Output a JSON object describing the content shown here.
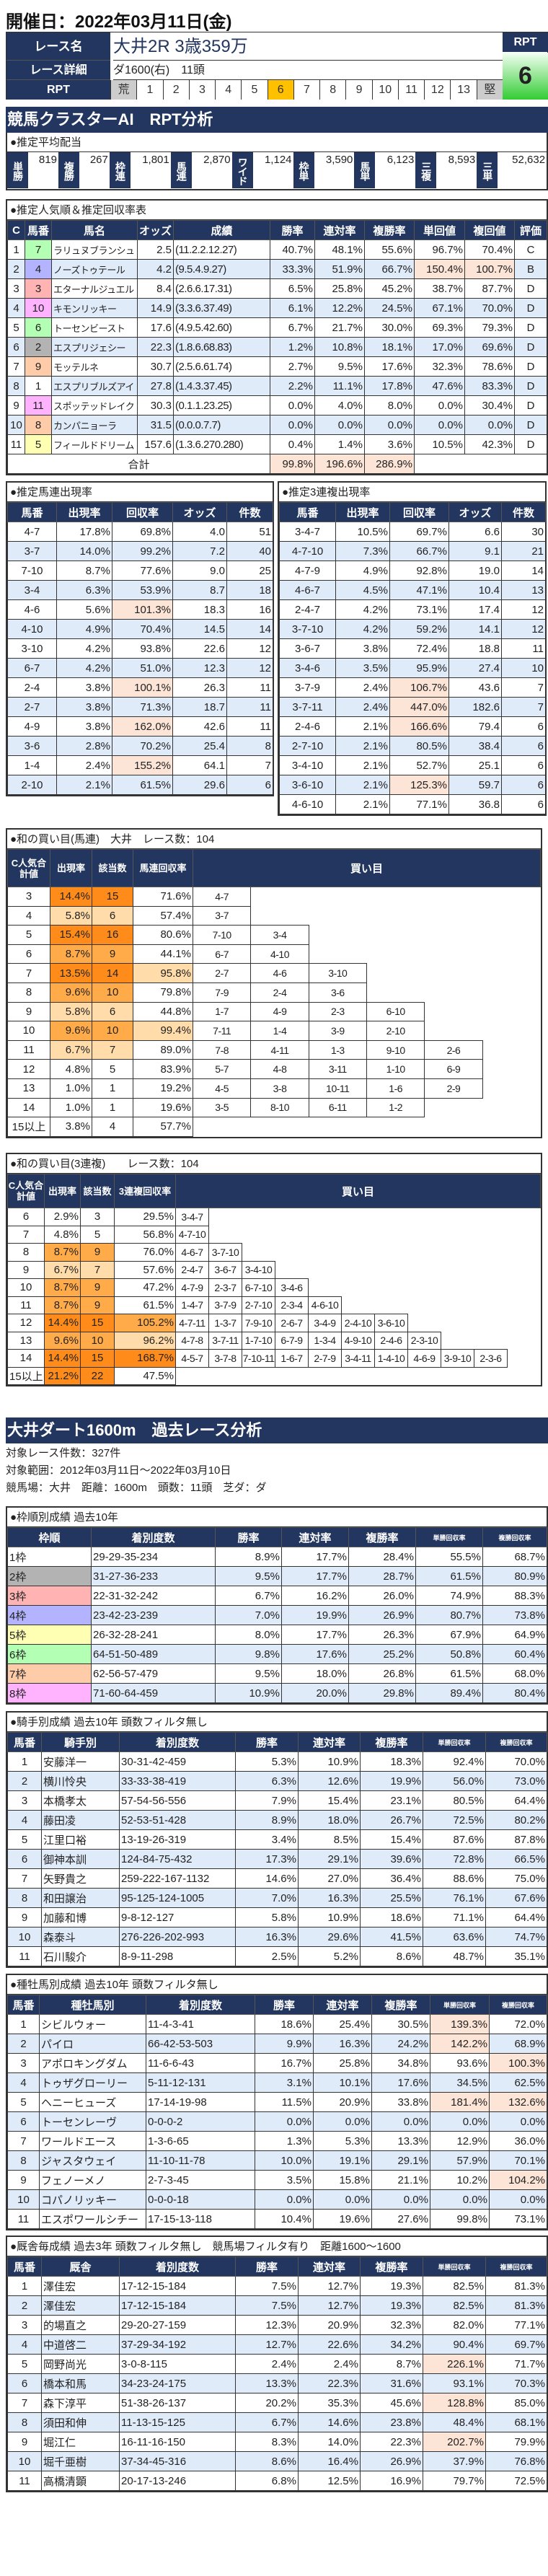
{
  "header": {
    "date_title": "開催日：2022年03月11日(金)",
    "race_name_label": "レース名",
    "race_name": "大井2R 3歳359万",
    "race_detail_label": "レース詳細",
    "race_detail": "ダ1600(右)　11頭",
    "rpt_label": "RPT",
    "rpt_scale": [
      "荒",
      "1",
      "2",
      "3",
      "4",
      "5",
      "6",
      "7",
      "8",
      "9",
      "10",
      "11",
      "12",
      "13",
      "堅"
    ],
    "rpt_selected": "6",
    "rpt_box_label": "RPT",
    "rpt_value": "6",
    "rpt_selected_color": "#FFC000"
  },
  "section1_title": "競馬クラスターAI　RPT分析",
  "payout": {
    "title": "●推定平均配当",
    "items": [
      {
        "label": "単勝",
        "value": "819"
      },
      {
        "label": "複勝",
        "value": "267"
      },
      {
        "label": "枠連",
        "value": "1,801"
      },
      {
        "label": "馬連",
        "value": "2,870"
      },
      {
        "label": "ワイド",
        "value": "1,124"
      },
      {
        "label": "枠単",
        "value": "3,590"
      },
      {
        "label": "馬単",
        "value": "6,123"
      },
      {
        "label": "三複",
        "value": "8,593"
      },
      {
        "label": "三単",
        "value": "52,632"
      }
    ]
  },
  "waku_colors": {
    "1": "#FFFFFF",
    "2": "#B3B3B3",
    "3": "#FFB3B3",
    "4": "#B3B3FF",
    "5": "#FFFFB3",
    "6": "#B3FFB3",
    "7": "#FFCCAA",
    "8": "#FFB3FF"
  },
  "popularity": {
    "title": "●推定人気順＆推定回収率表",
    "headers": [
      "C",
      "馬番",
      "馬名",
      "オッズ",
      "成績",
      "勝率",
      "連対率",
      "複勝率",
      "単回値",
      "複回値",
      "評価"
    ],
    "waku": [
      6,
      4,
      3,
      8,
      6,
      2,
      7,
      1,
      8,
      7,
      5
    ],
    "rows": [
      [
        "1",
        "7",
        "ラリュヌブランシュ",
        "2.5",
        "(11.2.2.12.27)",
        "40.7%",
        "48.1%",
        "55.6%",
        "96.7%",
        "70.4%",
        "C"
      ],
      [
        "2",
        "4",
        "ノーズトゥテール",
        "4.2",
        "(9.5.4.9.27)",
        "33.3%",
        "51.9%",
        "66.7%",
        "150.4%",
        "100.7%",
        "B"
      ],
      [
        "3",
        "3",
        "エターナルジュエル",
        "8.4",
        "(2.6.6.17.31)",
        "6.5%",
        "25.8%",
        "45.2%",
        "38.7%",
        "87.7%",
        "D"
      ],
      [
        "4",
        "10",
        "キモンリッキー",
        "14.9",
        "(3.3.6.37.49)",
        "6.1%",
        "12.2%",
        "24.5%",
        "67.1%",
        "70.0%",
        "D"
      ],
      [
        "5",
        "6",
        "トーセンビースト",
        "17.6",
        "(4.9.5.42.60)",
        "6.7%",
        "21.7%",
        "30.0%",
        "69.3%",
        "79.3%",
        "D"
      ],
      [
        "6",
        "2",
        "エスプリジェシー",
        "22.3",
        "(1.8.6.68.83)",
        "1.2%",
        "10.8%",
        "18.1%",
        "17.0%",
        "69.6%",
        "D"
      ],
      [
        "7",
        "9",
        "モッテルネ",
        "30.7",
        "(2.5.6.61.74)",
        "2.7%",
        "9.5%",
        "17.6%",
        "32.3%",
        "78.6%",
        "D"
      ],
      [
        "8",
        "1",
        "エスプリブルズアイ",
        "27.8",
        "(1.4.3.37.45)",
        "2.2%",
        "11.1%",
        "17.8%",
        "47.6%",
        "83.3%",
        "D"
      ],
      [
        "9",
        "11",
        "スポッテッドレイク",
        "30.3",
        "(0.1.1.23.25)",
        "0.0%",
        "4.0%",
        "8.0%",
        "0.0%",
        "30.4%",
        "D"
      ],
      [
        "10",
        "8",
        "カンパニョーラ",
        "31.5",
        "(0.0.0.7.7)",
        "0.0%",
        "0.0%",
        "0.0%",
        "0.0%",
        "0.0%",
        "D"
      ],
      [
        "11",
        "5",
        "フィールドドリーム",
        "157.6",
        "(1.3.6.270.280)",
        "0.4%",
        "1.4%",
        "3.6%",
        "10.5%",
        "42.3%",
        "D"
      ]
    ],
    "total_label": "合計",
    "totals": [
      "99.8%",
      "196.6%",
      "286.9%"
    ]
  },
  "umaren": {
    "title": "●推定馬連出現率",
    "headers": [
      "馬番",
      "出現率",
      "回収率",
      "オッズ",
      "件数"
    ],
    "rows": [
      [
        "4-7",
        "17.8%",
        "69.8%",
        "4.0",
        "51"
      ],
      [
        "3-7",
        "14.0%",
        "99.2%",
        "7.2",
        "40"
      ],
      [
        "7-10",
        "8.7%",
        "77.6%",
        "9.0",
        "25"
      ],
      [
        "3-4",
        "6.3%",
        "53.9%",
        "8.7",
        "18"
      ],
      [
        "4-6",
        "5.6%",
        "101.3%",
        "18.3",
        "16"
      ],
      [
        "4-10",
        "4.9%",
        "70.4%",
        "14.5",
        "14"
      ],
      [
        "3-10",
        "4.2%",
        "93.8%",
        "22.6",
        "12"
      ],
      [
        "6-7",
        "4.2%",
        "51.0%",
        "12.3",
        "12"
      ],
      [
        "2-4",
        "3.8%",
        "100.1%",
        "26.3",
        "11"
      ],
      [
        "2-7",
        "3.8%",
        "71.3%",
        "18.7",
        "11"
      ],
      [
        "4-9",
        "3.8%",
        "162.0%",
        "42.6",
        "11"
      ],
      [
        "3-6",
        "2.8%",
        "70.2%",
        "25.4",
        "8"
      ],
      [
        "1-4",
        "2.4%",
        "155.2%",
        "64.1",
        "7"
      ],
      [
        "2-10",
        "2.1%",
        "61.5%",
        "29.6",
        "6"
      ]
    ]
  },
  "sanrenpuku": {
    "title": "●推定3連複出現率",
    "headers": [
      "馬番",
      "出現率",
      "回収率",
      "オッズ",
      "件数"
    ],
    "rows": [
      [
        "3-4-7",
        "10.5%",
        "69.7%",
        "6.6",
        "30"
      ],
      [
        "4-7-10",
        "7.3%",
        "66.7%",
        "9.1",
        "21"
      ],
      [
        "4-7-9",
        "4.9%",
        "92.8%",
        "19.0",
        "14"
      ],
      [
        "4-6-7",
        "4.5%",
        "47.1%",
        "10.4",
        "13"
      ],
      [
        "2-4-7",
        "4.2%",
        "73.1%",
        "17.4",
        "12"
      ],
      [
        "3-7-10",
        "4.2%",
        "59.2%",
        "14.1",
        "12"
      ],
      [
        "3-6-7",
        "3.8%",
        "72.4%",
        "18.8",
        "11"
      ],
      [
        "3-4-6",
        "3.5%",
        "95.9%",
        "27.4",
        "10"
      ],
      [
        "3-7-9",
        "2.4%",
        "106.7%",
        "43.6",
        "7"
      ],
      [
        "3-7-11",
        "2.4%",
        "447.0%",
        "182.6",
        "7"
      ],
      [
        "2-4-6",
        "2.1%",
        "166.6%",
        "79.4",
        "6"
      ],
      [
        "2-7-10",
        "2.1%",
        "80.5%",
        "38.4",
        "6"
      ],
      [
        "3-4-10",
        "2.1%",
        "52.7%",
        "25.1",
        "6"
      ],
      [
        "3-6-10",
        "2.1%",
        "125.3%",
        "59.7",
        "6"
      ],
      [
        "4-6-10",
        "2.1%",
        "77.1%",
        "36.8",
        "6"
      ]
    ]
  },
  "sum_umaren": {
    "title": "●和の買い目(馬連)　大井　レース数：104",
    "headers": [
      "C人気合計値",
      "出現率",
      "該当数",
      "馬連回収率",
      "買い目"
    ],
    "rows": [
      {
        "c": "3",
        "rate": "14.4%",
        "count": "15",
        "ret": "71.6%",
        "buys": [
          "4-7"
        ]
      },
      {
        "c": "4",
        "rate": "5.8%",
        "count": "6",
        "ret": "57.4%",
        "buys": [
          "3-7"
        ]
      },
      {
        "c": "5",
        "rate": "15.4%",
        "count": "16",
        "ret": "80.6%",
        "buys": [
          "7-10",
          "3-4"
        ]
      },
      {
        "c": "6",
        "rate": "8.7%",
        "count": "9",
        "ret": "44.1%",
        "buys": [
          "6-7",
          "4-10"
        ]
      },
      {
        "c": "7",
        "rate": "13.5%",
        "count": "14",
        "ret": "95.8%",
        "buys": [
          "2-7",
          "4-6",
          "3-10"
        ]
      },
      {
        "c": "8",
        "rate": "9.6%",
        "count": "10",
        "ret": "79.8%",
        "buys": [
          "7-9",
          "2-4",
          "3-6"
        ]
      },
      {
        "c": "9",
        "rate": "5.8%",
        "count": "6",
        "ret": "44.8%",
        "buys": [
          "1-7",
          "4-9",
          "2-3",
          "6-10"
        ]
      },
      {
        "c": "10",
        "rate": "9.6%",
        "count": "10",
        "ret": "99.4%",
        "buys": [
          "7-11",
          "1-4",
          "3-9",
          "2-10"
        ]
      },
      {
        "c": "11",
        "rate": "6.7%",
        "count": "7",
        "ret": "89.0%",
        "buys": [
          "7-8",
          "4-11",
          "1-3",
          "9-10",
          "2-6"
        ]
      },
      {
        "c": "12",
        "rate": "4.8%",
        "count": "5",
        "ret": "83.9%",
        "buys": [
          "5-7",
          "4-8",
          "3-11",
          "1-10",
          "6-9"
        ]
      },
      {
        "c": "13",
        "rate": "1.0%",
        "count": "1",
        "ret": "19.2%",
        "buys": [
          "4-5",
          "3-8",
          "10-11",
          "1-6",
          "2-9"
        ]
      },
      {
        "c": "14",
        "rate": "1.0%",
        "count": "1",
        "ret": "19.6%",
        "buys": [
          "3-5",
          "8-10",
          "6-11",
          "1-2"
        ]
      },
      {
        "c": "15以上",
        "rate": "3.8%",
        "count": "4",
        "ret": "57.7%",
        "buys": []
      }
    ]
  },
  "sum_sanrenpuku": {
    "title": "●和の買い目(3連複)　　レース数：104",
    "headers": [
      "C人気合計値",
      "出現率",
      "該当数",
      "3連複回収率",
      "買い目"
    ],
    "rows": [
      {
        "c": "6",
        "rate": "2.9%",
        "count": "3",
        "ret": "29.5%",
        "buys": [
          "3-4-7"
        ]
      },
      {
        "c": "7",
        "rate": "4.8%",
        "count": "5",
        "ret": "56.8%",
        "buys": [
          "4-7-10"
        ]
      },
      {
        "c": "8",
        "rate": "8.7%",
        "count": "9",
        "ret": "76.0%",
        "buys": [
          "4-6-7",
          "3-7-10"
        ]
      },
      {
        "c": "9",
        "rate": "6.7%",
        "count": "7",
        "ret": "57.6%",
        "buys": [
          "2-4-7",
          "3-6-7",
          "3-4-10"
        ]
      },
      {
        "c": "10",
        "rate": "8.7%",
        "count": "9",
        "ret": "47.2%",
        "buys": [
          "4-7-9",
          "2-3-7",
          "6-7-10",
          "3-4-6"
        ]
      },
      {
        "c": "11",
        "rate": "8.7%",
        "count": "9",
        "ret": "61.5%",
        "buys": [
          "1-4-7",
          "3-7-9",
          "2-7-10",
          "2-3-4",
          "4-6-10"
        ]
      },
      {
        "c": "12",
        "rate": "14.4%",
        "count": "15",
        "ret": "105.2%",
        "buys": [
          "4-7-11",
          "1-3-7",
          "7-9-10",
          "2-6-7",
          "3-4-9",
          "2-4-10",
          "3-6-10"
        ]
      },
      {
        "c": "13",
        "rate": "9.6%",
        "count": "10",
        "ret": "96.2%",
        "buys": [
          "4-7-8",
          "3-7-11",
          "1-7-10",
          "6-7-9",
          "1-3-4",
          "4-9-10",
          "2-4-6",
          "2-3-10"
        ]
      },
      {
        "c": "14",
        "rate": "14.4%",
        "count": "15",
        "ret": "168.7%",
        "buys": [
          "4-5-7",
          "3-7-8",
          "7-10-11",
          "1-6-7",
          "2-7-9",
          "3-4-11",
          "1-4-10",
          "4-6-9",
          "3-9-10",
          "2-3-6"
        ]
      },
      {
        "c": "15以上",
        "rate": "21.2%",
        "count": "22",
        "ret": "47.5%",
        "buys": []
      }
    ]
  },
  "past": {
    "title": "大井ダート1600m　過去レース分析",
    "lines": [
      "対象レース件数：327件",
      "対象範囲：2012年03月11日～2022年03月10日",
      "競馬場：大井　距離：1600m　頭数：11頭　芝ダ：ダ"
    ]
  },
  "waku_table": {
    "title": "●枠順別成績 過去10年",
    "headers": [
      "枠順",
      "着別度数",
      "勝率",
      "連対率",
      "複勝率",
      "単勝回収率",
      "複勝回収率"
    ],
    "rows": [
      [
        "1枠",
        "29-29-35-234",
        "8.9%",
        "17.7%",
        "28.4%",
        "55.5%",
        "68.7%"
      ],
      [
        "2枠",
        "31-27-36-233",
        "9.5%",
        "17.7%",
        "28.7%",
        "61.5%",
        "80.9%"
      ],
      [
        "3枠",
        "22-31-32-242",
        "6.7%",
        "16.2%",
        "26.0%",
        "74.9%",
        "88.3%"
      ],
      [
        "4枠",
        "23-42-23-239",
        "7.0%",
        "19.9%",
        "26.9%",
        "80.7%",
        "73.8%"
      ],
      [
        "5枠",
        "26-32-28-241",
        "8.0%",
        "17.7%",
        "26.3%",
        "67.9%",
        "64.9%"
      ],
      [
        "6枠",
        "64-51-50-489",
        "9.8%",
        "17.6%",
        "25.2%",
        "50.8%",
        "60.4%"
      ],
      [
        "7枠",
        "62-56-57-479",
        "9.5%",
        "18.0%",
        "26.8%",
        "61.5%",
        "68.0%"
      ],
      [
        "8枠",
        "71-60-64-459",
        "10.9%",
        "20.0%",
        "29.8%",
        "89.4%",
        "80.4%"
      ]
    ]
  },
  "jockey": {
    "title": "●騎手別成績 過去10年 頭数フィルタ無し",
    "headers": [
      "馬番",
      "騎手別",
      "着別度数",
      "勝率",
      "連対率",
      "複勝率",
      "単勝回収率",
      "複勝回収率"
    ],
    "rows": [
      [
        "1",
        "安藤洋一",
        "30-31-42-459",
        "5.3%",
        "10.9%",
        "18.3%",
        "92.4%",
        "70.0%"
      ],
      [
        "2",
        "横川怜央",
        "33-33-38-419",
        "6.3%",
        "12.6%",
        "19.9%",
        "56.0%",
        "73.0%"
      ],
      [
        "3",
        "本橋孝太",
        "57-54-56-556",
        "7.9%",
        "15.4%",
        "23.1%",
        "80.5%",
        "64.4%"
      ],
      [
        "4",
        "藤田凌",
        "52-53-51-428",
        "8.9%",
        "18.0%",
        "26.7%",
        "72.5%",
        "80.2%"
      ],
      [
        "5",
        "江里口裕",
        "13-19-26-319",
        "3.4%",
        "8.5%",
        "15.4%",
        "87.6%",
        "87.8%"
      ],
      [
        "6",
        "御神本訓",
        "124-84-75-432",
        "17.3%",
        "29.1%",
        "39.6%",
        "72.8%",
        "66.5%"
      ],
      [
        "7",
        "矢野貴之",
        "259-222-167-1132",
        "14.6%",
        "27.0%",
        "36.4%",
        "88.6%",
        "75.0%"
      ],
      [
        "8",
        "和田譲治",
        "95-125-124-1005",
        "7.0%",
        "16.3%",
        "25.5%",
        "76.1%",
        "67.6%"
      ],
      [
        "9",
        "加藤和博",
        "9-8-12-127",
        "5.8%",
        "10.9%",
        "18.6%",
        "71.1%",
        "64.4%"
      ],
      [
        "10",
        "森泰斗",
        "276-226-202-993",
        "16.3%",
        "29.6%",
        "41.5%",
        "63.6%",
        "74.7%"
      ],
      [
        "11",
        "石川駿介",
        "8-9-11-298",
        "2.5%",
        "5.2%",
        "8.6%",
        "48.7%",
        "35.1%"
      ]
    ]
  },
  "sire": {
    "title": "●種牡馬別成績 過去10年 頭数フィルタ無し",
    "headers": [
      "馬番",
      "種牡馬別",
      "着別度数",
      "勝率",
      "連対率",
      "複勝率",
      "単勝回収率",
      "複勝回収率"
    ],
    "rows": [
      [
        "1",
        "シビルウォー",
        "11-4-3-41",
        "18.6%",
        "25.4%",
        "30.5%",
        "139.3%",
        "72.0%"
      ],
      [
        "2",
        "パイロ",
        "66-42-53-503",
        "9.9%",
        "16.3%",
        "24.2%",
        "142.2%",
        "68.9%"
      ],
      [
        "3",
        "アポロキングダム",
        "11-6-6-43",
        "16.7%",
        "25.8%",
        "34.8%",
        "93.6%",
        "100.3%"
      ],
      [
        "4",
        "トゥザグローリー",
        "5-11-12-131",
        "3.1%",
        "10.1%",
        "17.6%",
        "34.5%",
        "62.5%"
      ],
      [
        "5",
        "ヘニーヒューズ",
        "17-14-19-98",
        "11.5%",
        "20.9%",
        "33.8%",
        "181.4%",
        "132.6%"
      ],
      [
        "6",
        "トーセンレーヴ",
        "0-0-0-2",
        "0.0%",
        "0.0%",
        "0.0%",
        "0.0%",
        "0.0%"
      ],
      [
        "7",
        "ワールドエース",
        "1-3-6-65",
        "1.3%",
        "5.3%",
        "13.3%",
        "12.9%",
        "36.0%"
      ],
      [
        "8",
        "ジャスタウェイ",
        "11-10-11-78",
        "10.0%",
        "19.1%",
        "29.1%",
        "57.9%",
        "70.1%"
      ],
      [
        "9",
        "フェノーメノ",
        "2-7-3-45",
        "3.5%",
        "15.8%",
        "21.1%",
        "10.2%",
        "104.2%"
      ],
      [
        "10",
        "コパノリッキー",
        "0-0-0-18",
        "0.0%",
        "0.0%",
        "0.0%",
        "0.0%",
        "0.0%"
      ],
      [
        "11",
        "エスポワールシチー",
        "17-15-13-118",
        "10.4%",
        "19.6%",
        "27.6%",
        "99.8%",
        "73.1%"
      ]
    ]
  },
  "stable": {
    "title": "●厩舎毎成績 過去3年 頭数フィルタ無し　競馬場フィルタ有り　距離1600～1600",
    "headers": [
      "馬番",
      "厩舎",
      "着別度数",
      "勝率",
      "連対率",
      "複勝率",
      "単勝回収率",
      "複勝回収率"
    ],
    "rows": [
      [
        "1",
        "澤佳宏",
        "17-12-15-184",
        "7.5%",
        "12.7%",
        "19.3%",
        "82.5%",
        "81.3%"
      ],
      [
        "2",
        "澤佳宏",
        "17-12-15-184",
        "7.5%",
        "12.7%",
        "19.3%",
        "82.5%",
        "81.3%"
      ],
      [
        "3",
        "的場直之",
        "29-20-27-159",
        "12.3%",
        "20.9%",
        "32.3%",
        "82.0%",
        "77.1%"
      ],
      [
        "4",
        "中道啓二",
        "37-29-34-192",
        "12.7%",
        "22.6%",
        "34.2%",
        "90.4%",
        "69.7%"
      ],
      [
        "5",
        "岡野尚光",
        "3-0-8-115",
        "2.4%",
        "2.4%",
        "8.7%",
        "226.1%",
        "71.7%"
      ],
      [
        "6",
        "橋本和馬",
        "34-23-24-175",
        "13.3%",
        "22.3%",
        "31.6%",
        "93.1%",
        "70.3%"
      ],
      [
        "7",
        "森下淳平",
        "51-38-26-137",
        "20.2%",
        "35.3%",
        "45.6%",
        "128.8%",
        "85.0%"
      ],
      [
        "8",
        "須田和伸",
        "11-13-15-125",
        "6.7%",
        "14.6%",
        "23.8%",
        "48.4%",
        "68.1%"
      ],
      [
        "9",
        "堀江仁",
        "16-11-16-150",
        "8.3%",
        "14.0%",
        "22.3%",
        "202.7%",
        "79.9%"
      ],
      [
        "10",
        "堀千亜樹",
        "37-34-45-316",
        "8.6%",
        "16.4%",
        "26.9%",
        "37.9%",
        "76.8%"
      ],
      [
        "11",
        "高橋清顕",
        "20-17-13-246",
        "6.8%",
        "12.5%",
        "16.9%",
        "79.7%",
        "72.5%"
      ]
    ]
  }
}
